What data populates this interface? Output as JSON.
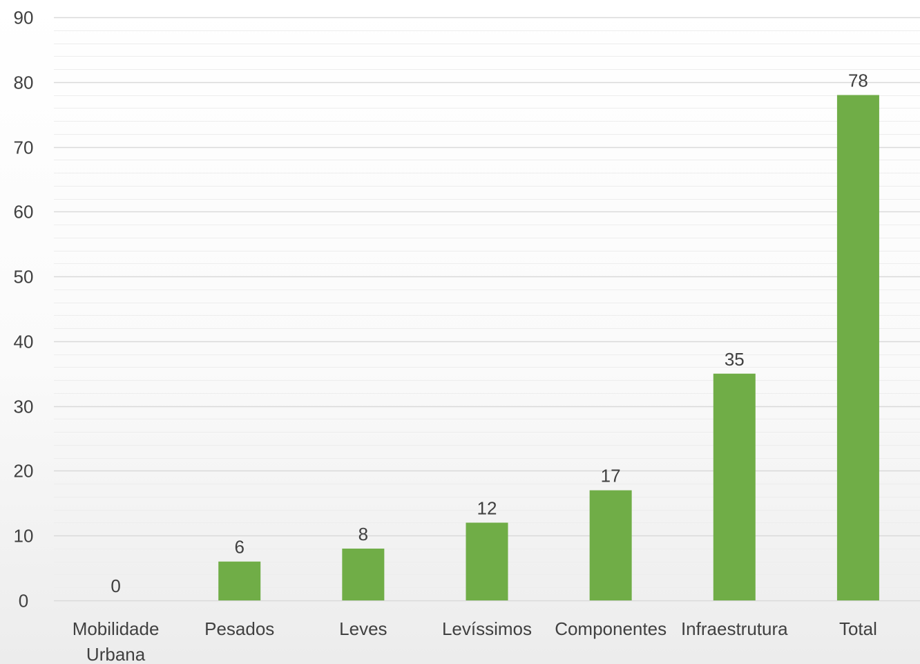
{
  "chart_data": {
    "type": "bar",
    "categories": [
      "Mobilidade Urbana",
      "Pesados",
      "Leves",
      "Levíssimos",
      "Componentes",
      "Infraestrutura",
      "Total"
    ],
    "category_lines": [
      [
        "Mobilidade",
        "Urbana"
      ],
      [
        "Pesados"
      ],
      [
        "Leves"
      ],
      [
        "Levíssimos"
      ],
      [
        "Componentes"
      ],
      [
        "Infraestrutura"
      ],
      [
        "Total"
      ]
    ],
    "values": [
      0,
      6,
      8,
      12,
      17,
      35,
      78
    ],
    "data_labels": [
      "0",
      "6",
      "8",
      "12",
      "17",
      "35",
      "78"
    ],
    "ylim": [
      0,
      90
    ],
    "y_major_step": 10,
    "y_minor_step": 2,
    "y_ticks": [
      "0",
      "10",
      "20",
      "30",
      "40",
      "50",
      "60",
      "70",
      "80",
      "90"
    ],
    "title": "",
    "xlabel": "",
    "ylabel": "",
    "grid": true,
    "legend": false,
    "colors": {
      "bar": "#70AD47",
      "major_grid": "#D9D9D9",
      "minor_grid": "#EDEDED",
      "text": "#404040"
    }
  }
}
